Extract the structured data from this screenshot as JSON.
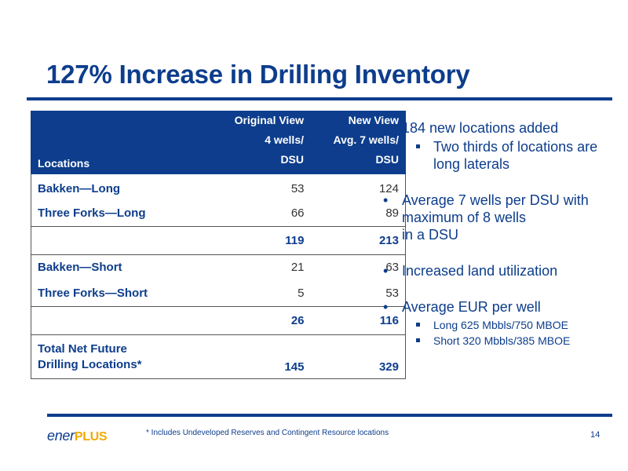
{
  "slide": {
    "title": "127% Increase in Drilling Inventory",
    "footnote": "* Includes Undeveloped Reserves and Contingent Resource locations",
    "page_number": "14",
    "logo": {
      "part1": "ener",
      "part2": "PLUS"
    }
  },
  "table": {
    "headers": {
      "locations": "Locations",
      "original_line1": "Original View",
      "original_line2": "4 wells/",
      "original_line3": "DSU",
      "new_line1": "New View",
      "new_line2": "Avg. 7 wells/",
      "new_line3": "DSU"
    },
    "rows": [
      {
        "label": "Bakken—Long",
        "original": "53",
        "new": "124"
      },
      {
        "label": "Three Forks—Long",
        "original": "66",
        "new": "89"
      },
      {
        "label": "",
        "original": "119",
        "new": "213"
      },
      {
        "label": "Bakken—Short",
        "original": "21",
        "new": "63"
      },
      {
        "label": "Three Forks—Short",
        "original": "5",
        "new": "53"
      },
      {
        "label": "",
        "original": "26",
        "new": "116"
      }
    ],
    "total": {
      "label_line1": "Total Net Future",
      "label_line2": "Drilling Locations*",
      "original": "145",
      "new": "329"
    }
  },
  "bullets": [
    {
      "text": "184 new locations added",
      "sub": [
        "Two thirds of locations are long laterals"
      ]
    },
    {
      "text": "Average 7 wells per DSU with maximum of 8 wells\nin a DSU",
      "sub": []
    },
    {
      "text": "Increased land utilization",
      "sub": []
    },
    {
      "text": "Average EUR per well",
      "sub": [
        "Long 625 Mbbls/750 MBOE",
        "Short 320 Mbbls/385 MBOE"
      ]
    }
  ],
  "colors": {
    "brand_blue": "#0d3d8c",
    "brand_gold": "#f2a900"
  }
}
